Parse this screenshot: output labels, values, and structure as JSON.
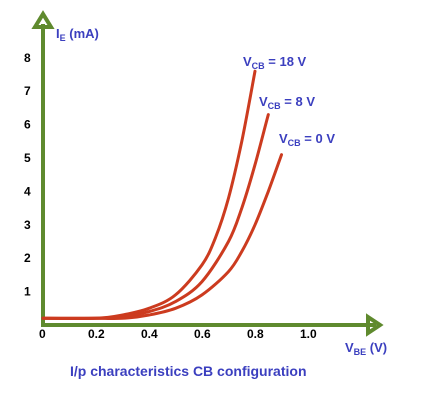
{
  "chart_data": {
    "type": "line",
    "caption": "I/p characteristics CB configuration",
    "xlabel": {
      "main": "V",
      "sub": "BE",
      "unit": " (V)"
    },
    "ylabel": {
      "main": "I",
      "sub": "E",
      "unit": " (mA)"
    },
    "xticks": [
      "0",
      "0.2",
      "0.4",
      "0.6",
      "0.8",
      "1.0"
    ],
    "yticks": [
      "1",
      "2",
      "3",
      "4",
      "5",
      "6",
      "7",
      "8"
    ],
    "xlim": [
      0,
      1.25
    ],
    "ylim": [
      0,
      8.6
    ],
    "series": [
      {
        "name": {
          "main": "V",
          "sub": "CB",
          "rest": " = 18 V"
        },
        "x": [
          0.0,
          0.2,
          0.3,
          0.4,
          0.5,
          0.6,
          0.65,
          0.7,
          0.75,
          0.8
        ],
        "y": [
          0.2,
          0.2,
          0.3,
          0.5,
          0.9,
          1.8,
          2.6,
          3.8,
          5.5,
          7.6
        ]
      },
      {
        "name": {
          "main": "V",
          "sub": "CB",
          "rest": " = 8 V"
        },
        "x": [
          0.0,
          0.2,
          0.3,
          0.4,
          0.5,
          0.6,
          0.7,
          0.75,
          0.8,
          0.85
        ],
        "y": [
          0.2,
          0.2,
          0.25,
          0.4,
          0.7,
          1.3,
          2.5,
          3.5,
          4.8,
          6.3
        ]
      },
      {
        "name": {
          "main": "V",
          "sub": "CB",
          "rest": " = 0 V"
        },
        "x": [
          0.0,
          0.2,
          0.3,
          0.4,
          0.5,
          0.6,
          0.7,
          0.75,
          0.8,
          0.85,
          0.9
        ],
        "y": [
          0.2,
          0.2,
          0.2,
          0.3,
          0.5,
          0.9,
          1.6,
          2.2,
          3.0,
          4.0,
          5.1
        ]
      }
    ],
    "colors": {
      "curve": "#cc3b1f",
      "axis": "#5f8a2e",
      "text": "#3b3fbf"
    }
  }
}
